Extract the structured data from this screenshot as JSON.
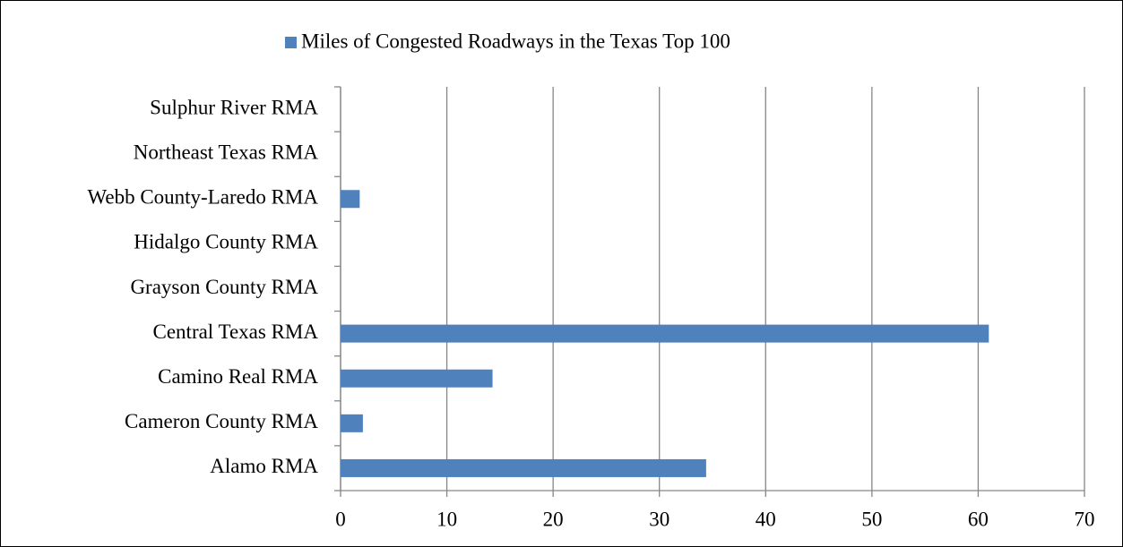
{
  "chart_data": {
    "type": "barh",
    "categories": [
      "Alamo RMA",
      "Cameron County RMA",
      "Camino Real RMA",
      "Central Texas RMA",
      "Grayson County RMA",
      "Hidalgo County RMA",
      "Webb County-Laredo RMA",
      "Northeast Texas RMA",
      "Sulphur River RMA"
    ],
    "series": [
      {
        "name": "Miles of Congested Roadways in the Texas Top 100",
        "color": "#4f81bd",
        "values": [
          34.4,
          2.1,
          14.3,
          61,
          0,
          0,
          1.8,
          0,
          0
        ]
      }
    ],
    "xlim": [
      0,
      70
    ],
    "xticks": [
      0,
      10,
      20,
      30,
      40,
      50,
      60,
      70
    ],
    "grid": true,
    "legend": "top"
  }
}
